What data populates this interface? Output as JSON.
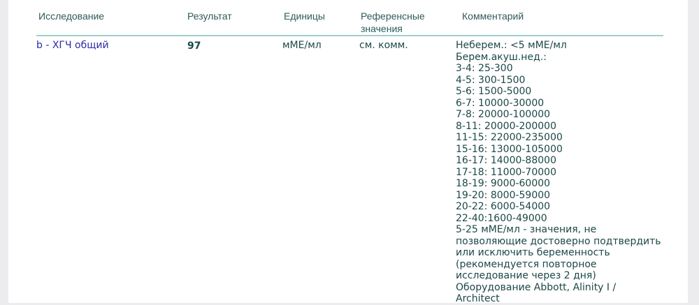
{
  "table": {
    "headers": {
      "study": "Исследование",
      "result": "Результат",
      "units": "Единицы",
      "reference": "Референсные значения",
      "comment": "Комментарий"
    },
    "rows": [
      {
        "study": "b - ХГЧ общий",
        "result": "97",
        "units": "мМЕ/мл",
        "reference": "см. комм.",
        "comment": "Неберем.: <5 мМЕ/мл\nБерем.акуш.нед.:\n3-4: 25-300\n4-5: 300-1500\n5-6: 1500-5000\n6-7: 10000-30000\n7-8: 20000-100000\n8-11: 20000-200000\n11-15: 22000-235000\n15-16: 13000-105000\n16-17: 14000-88000\n17-18: 11000-70000\n18-19: 9000-60000\n19-20: 8000-59000\n20-22: 6000-54000\n22-40:1600-49000\n5-25 мМЕ/мл - значения, не\nпозволяющие достоверно подтвердить\nили исключить беременность\n(рекомендуется повторное\nисследование через 2 дня)\nОборудование Abbott, Alinity I /\nArchitect"
      }
    ]
  }
}
